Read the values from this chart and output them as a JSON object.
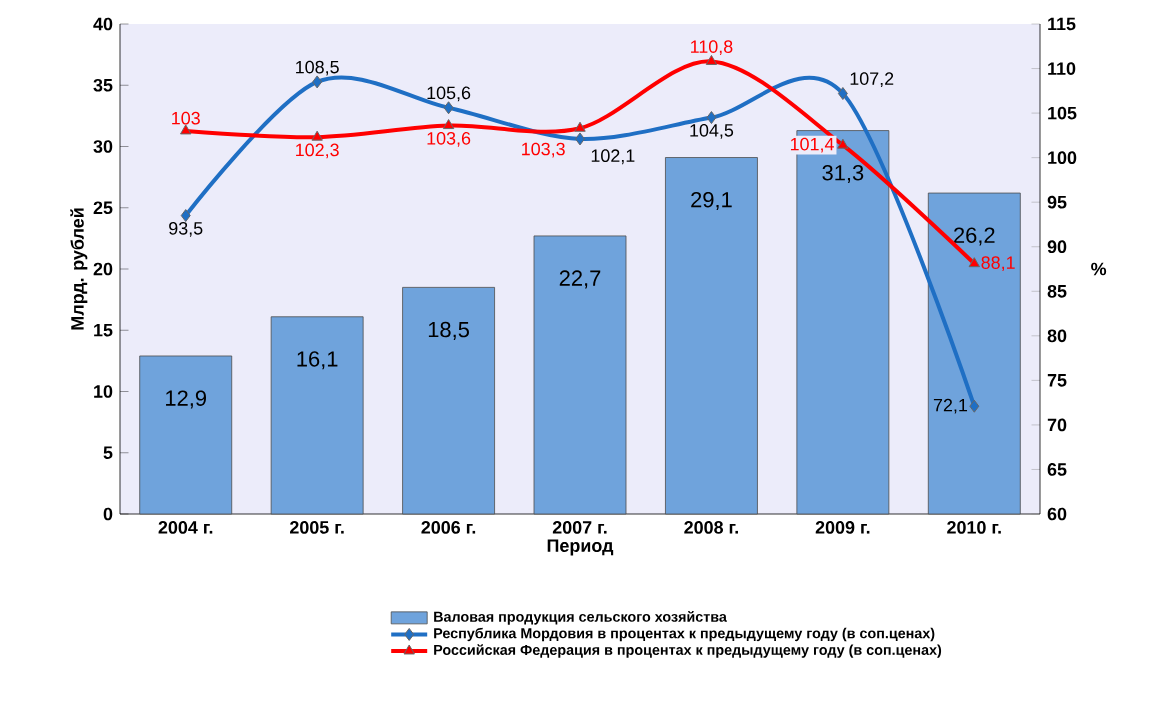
{
  "chart_data": {
    "type": "bar",
    "xlabel": "Период",
    "ylabel": "Млрд. рублей",
    "y2label": "%",
    "categories": [
      "2004 г.",
      "2005 г.",
      "2006 г.",
      "2007 г.",
      "2008 г.",
      "2009 г.",
      "2010 г."
    ],
    "series": [
      {
        "name": "Валовая продукция сельского хозяйства",
        "color": "#6fa3dc",
        "values": [
          12.9,
          16.1,
          18.5,
          22.7,
          29.1,
          31.3,
          26.2
        ],
        "value_labels": [
          "12,9",
          "16,1",
          "18,5",
          "22,7",
          "29,1",
          "31,3",
          "26,2"
        ]
      },
      {
        "type": "line",
        "axis": "y2",
        "marker": "diamond",
        "name": "Республика Мордовия в процентах к предыдущему году (в соп.ценах)",
        "color": "#1f6fc4",
        "values": [
          93.5,
          108.5,
          105.6,
          102.1,
          104.5,
          107.2,
          72.1
        ],
        "value_labels": [
          "93,5",
          "108,5",
          "105,6",
          "102,1",
          "104,5",
          "107,2",
          "72,1"
        ]
      },
      {
        "type": "line",
        "axis": "y2",
        "marker": "triangle",
        "name": "Российская Федерация в процентах к предыдущему году (в соп.ценах)",
        "color": "#ff0000",
        "values": [
          103,
          102.3,
          103.6,
          103.3,
          110.8,
          101.4,
          88.1
        ],
        "value_labels": [
          "103",
          "102,3",
          "103,6",
          "103,3",
          "110,8",
          "101,4",
          "88,1"
        ]
      }
    ],
    "ylim": [
      0,
      40
    ],
    "yticks": [
      0,
      5,
      10,
      15,
      20,
      25,
      30,
      35,
      40
    ],
    "y2lim": [
      60,
      115
    ],
    "y2ticks": [
      60,
      65,
      70,
      75,
      80,
      85,
      90,
      95,
      100,
      105,
      110,
      115
    ],
    "legend": "bottom"
  }
}
